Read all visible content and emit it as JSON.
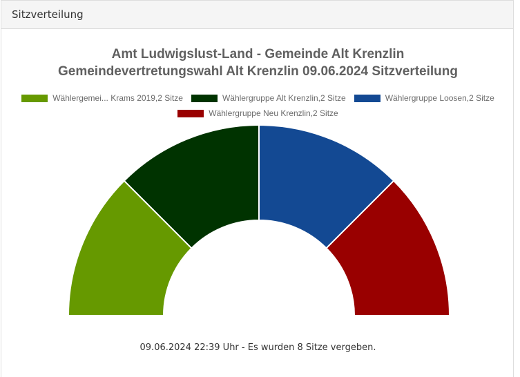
{
  "panel": {
    "header": "Sitzverteilung"
  },
  "chart_data": {
    "type": "pie",
    "subtype": "parliament-semicircle",
    "title_line1": "Amt Ludwigslust-Land - Gemeinde Alt Krenzlin",
    "title_line2": "Gemeindevertretungswahl Alt Krenzlin 09.06.2024 Sitzverteilung",
    "legend_placement": "top",
    "categories": [
      "Wählergemei... Krams 2019,2 Sitze",
      "Wählergruppe Alt Krenzlin,2 Sitze",
      "Wählergruppe Loosen,2 Sitze",
      "Wählergruppe Neu Krenzlin,2 Sitze"
    ],
    "values": [
      2,
      2,
      2,
      2
    ],
    "colors": [
      "#669900",
      "#003300",
      "#134993",
      "#990000"
    ],
    "total_seats": 8
  },
  "footer": {
    "text": "09.06.2024 22:39 Uhr - Es wurden 8 Sitze vergeben."
  }
}
